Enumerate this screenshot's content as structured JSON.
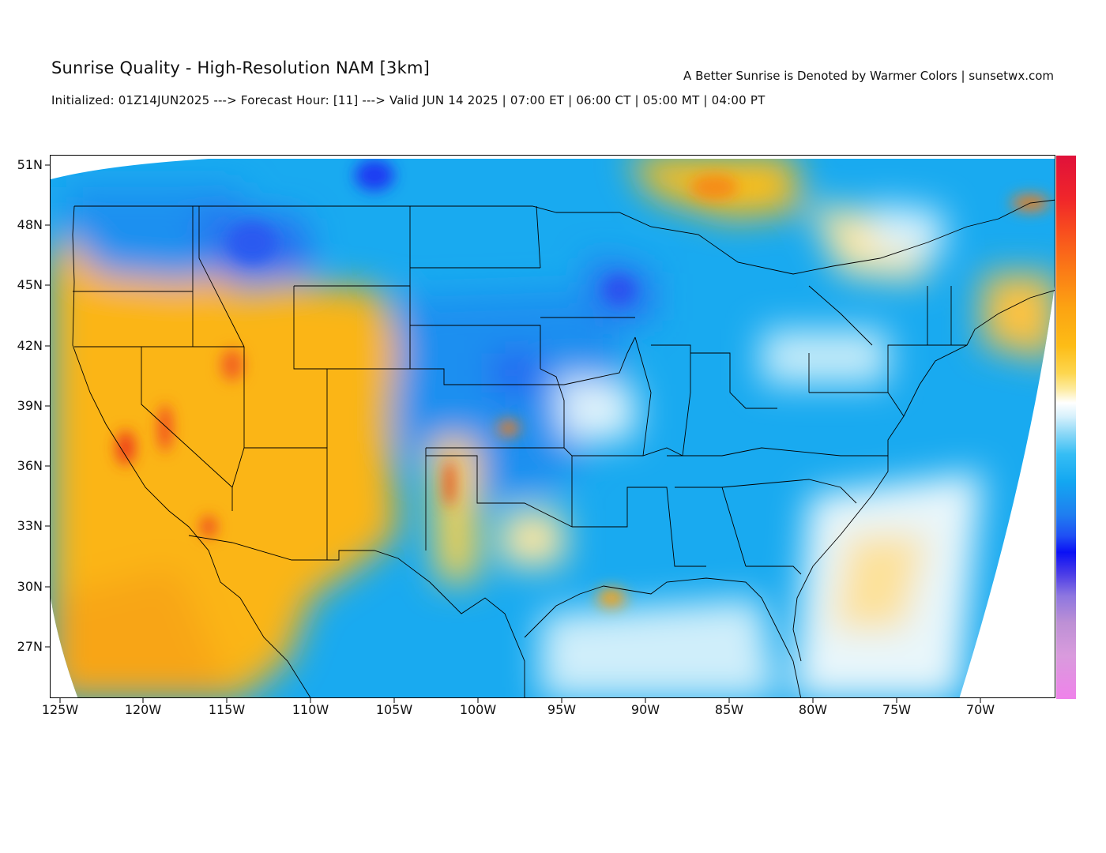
{
  "header": {
    "title": "Sunrise Quality - High-Resolution NAM [3km]",
    "right_note": "A Better Sunrise is Denoted by Warmer Colors | sunsetwx.com",
    "subtitle": "Initialized: 01Z14JUN2025 ---> Forecast Hour: [11] ---> Valid JUN 14 2025 | 07:00 ET | 06:00 CT | 05:00 MT | 04:00 PT"
  },
  "axes": {
    "lat_ticks": [
      "51N",
      "48N",
      "45N",
      "42N",
      "39N",
      "36N",
      "33N",
      "30N",
      "27N"
    ],
    "lat_values": [
      51,
      48,
      45,
      42,
      39,
      36,
      33,
      30,
      27
    ],
    "lon_ticks": [
      "125W",
      "120W",
      "115W",
      "110W",
      "105W",
      "100W",
      "95W",
      "90W",
      "85W",
      "80W",
      "75W",
      "70W"
    ],
    "lon_values": [
      -125,
      -120,
      -115,
      -110,
      -105,
      -100,
      -95,
      -90,
      -85,
      -80,
      -75,
      -70
    ],
    "lon_range": [
      -125.8,
      -65.6
    ],
    "lat_range": [
      24.6,
      51.6
    ]
  },
  "legend": {
    "type": "continuous-colorbar",
    "colors": [
      "#e0113a",
      "#fb7a16",
      "#fdbc16",
      "#ffffff",
      "#13a7f1",
      "#0a10f5",
      "#ef82ea"
    ]
  }
}
